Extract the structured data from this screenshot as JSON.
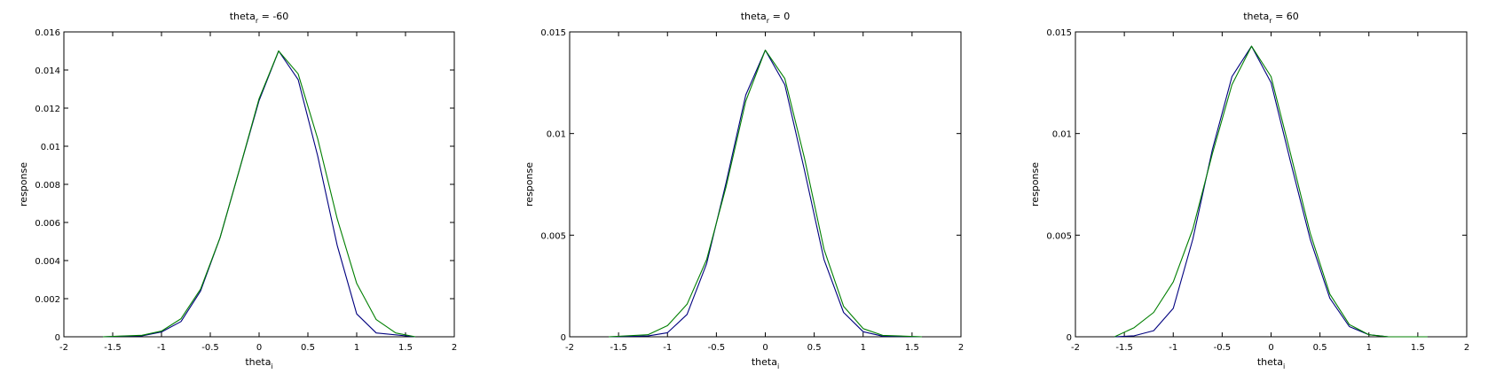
{
  "chart_data": [
    {
      "type": "line",
      "title": {
        "prefix": "theta",
        "sub": "r",
        "suffix": " = -60"
      },
      "xlabel": {
        "prefix": "theta",
        "sub": "i"
      },
      "ylabel": "response",
      "xlim": [
        -2,
        2
      ],
      "ylim": [
        0,
        0.016
      ],
      "xticks": [
        "-2",
        "-1.5",
        "-1",
        "-0.5",
        "0",
        "0.5",
        "1",
        "1.5",
        "2"
      ],
      "yticks": [
        "0",
        "0.002",
        "0.004",
        "0.006",
        "0.008",
        "0.01",
        "0.012",
        "0.014",
        "0.016"
      ],
      "series": [
        {
          "color": "#00007f",
          "x": [
            -1.6,
            -1.2,
            -1.0,
            -0.8,
            -0.6,
            -0.4,
            -0.2,
            0.0,
            0.2,
            0.4,
            0.6,
            0.8,
            1.0,
            1.2,
            1.6
          ],
          "y": [
            0.0,
            5e-05,
            0.00025,
            0.0008,
            0.0024,
            0.0052,
            0.0088,
            0.0124,
            0.015,
            0.0135,
            0.0095,
            0.0048,
            0.0012,
            0.0002,
            0.0
          ]
        },
        {
          "color": "#007f00",
          "x": [
            -1.6,
            -1.2,
            -1.0,
            -0.8,
            -0.6,
            -0.4,
            -0.2,
            0.0,
            0.2,
            0.4,
            0.6,
            0.8,
            1.0,
            1.2,
            1.4,
            1.6
          ],
          "y": [
            0.0,
            8e-05,
            0.0003,
            0.00095,
            0.0025,
            0.0052,
            0.0088,
            0.0125,
            0.015,
            0.0138,
            0.0104,
            0.0062,
            0.0028,
            0.0009,
            0.0002,
            0.0
          ]
        }
      ]
    },
    {
      "type": "line",
      "title": {
        "prefix": "theta",
        "sub": "r",
        "suffix": " = 0"
      },
      "xlabel": {
        "prefix": "theta",
        "sub": "i"
      },
      "ylabel": "response",
      "xlim": [
        -2,
        2
      ],
      "ylim": [
        0,
        0.015
      ],
      "xticks": [
        "-2",
        "-1.5",
        "-1",
        "-0.5",
        "0",
        "0.5",
        "1",
        "1.5",
        "2"
      ],
      "yticks": [
        "0",
        "0.005",
        "0.01",
        "0.015"
      ],
      "series": [
        {
          "color": "#00007f",
          "x": [
            -1.6,
            -1.2,
            -1.0,
            -0.8,
            -0.6,
            -0.4,
            -0.2,
            0.0,
            0.2,
            0.4,
            0.6,
            0.8,
            1.0,
            1.2,
            1.6
          ],
          "y": [
            0.0,
            4e-05,
            0.0002,
            0.0011,
            0.0036,
            0.0076,
            0.0119,
            0.0141,
            0.0124,
            0.0082,
            0.0038,
            0.0012,
            0.00025,
            3e-05,
            0.0
          ]
        },
        {
          "color": "#007f00",
          "x": [
            -1.6,
            -1.2,
            -1.0,
            -0.8,
            -0.6,
            -0.4,
            -0.2,
            0.0,
            0.2,
            0.4,
            0.6,
            0.8,
            1.0,
            1.2,
            1.6
          ],
          "y": [
            0.0,
            0.0001,
            0.00055,
            0.0016,
            0.0038,
            0.0074,
            0.0116,
            0.0141,
            0.0127,
            0.0088,
            0.0043,
            0.0015,
            0.0004,
            7e-05,
            0.0
          ]
        }
      ]
    },
    {
      "type": "line",
      "title": {
        "prefix": "theta",
        "sub": "r",
        "suffix": " = 60"
      },
      "xlabel": {
        "prefix": "theta",
        "sub": "i"
      },
      "ylabel": "response",
      "xlim": [
        -2,
        2
      ],
      "ylim": [
        0,
        0.015
      ],
      "xticks": [
        "-2",
        "-1.5",
        "-1",
        "-0.5",
        "0",
        "0.5",
        "1",
        "1.5",
        "2"
      ],
      "yticks": [
        "0",
        "0.005",
        "0.01",
        "0.015"
      ],
      "series": [
        {
          "color": "#00007f",
          "x": [
            -1.6,
            -1.4,
            -1.2,
            -1.0,
            -0.8,
            -0.6,
            -0.4,
            -0.2,
            0.0,
            0.2,
            0.4,
            0.6,
            0.8,
            1.0,
            1.2,
            1.6
          ],
          "y": [
            0.0,
            5e-05,
            0.0003,
            0.0014,
            0.0048,
            0.0092,
            0.0128,
            0.0143,
            0.0125,
            0.0086,
            0.0048,
            0.0019,
            0.0005,
            0.0001,
            0.0,
            0.0
          ]
        },
        {
          "color": "#007f00",
          "x": [
            -1.6,
            -1.4,
            -1.2,
            -1.0,
            -0.8,
            -0.6,
            -0.4,
            -0.2,
            0.0,
            0.2,
            0.4,
            0.6,
            0.8,
            1.0,
            1.2,
            1.6
          ],
          "y": [
            0.0,
            0.00045,
            0.0012,
            0.0027,
            0.0053,
            0.009,
            0.0124,
            0.0143,
            0.0128,
            0.009,
            0.0051,
            0.0021,
            0.0006,
            0.0001,
            0.0,
            0.0
          ]
        }
      ]
    }
  ]
}
